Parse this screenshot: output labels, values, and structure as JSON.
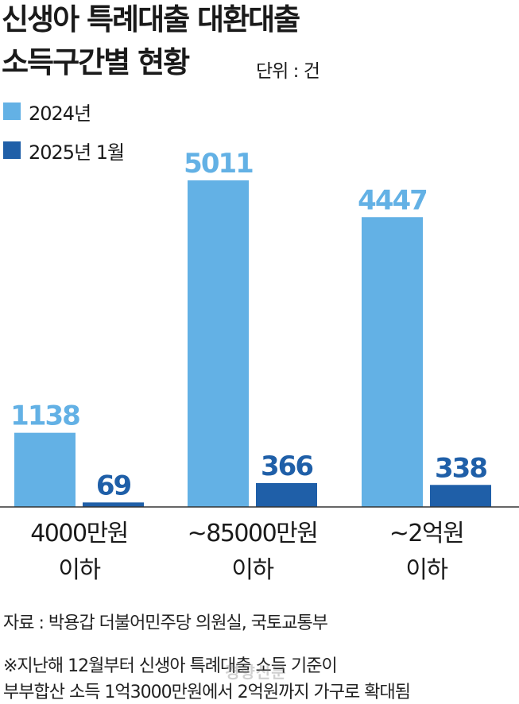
{
  "title_line1": "신생아 특례대출 대환대출",
  "title_line2": "소득구간별 현황",
  "unit": "단위 : 건",
  "legend": [
    {
      "label": "2024년",
      "color": "#63b1e5"
    },
    {
      "label": "2025년 1월",
      "color": "#1f5fa8"
    }
  ],
  "chart_data": {
    "type": "bar",
    "categories": [
      [
        "4000만원",
        "이하"
      ],
      [
        "~85000만원",
        "이하"
      ],
      [
        "~2억원",
        "이하"
      ]
    ],
    "series": [
      {
        "name": "2024년",
        "values": [
          1138,
          5011,
          4447
        ],
        "color": "#63b1e5"
      },
      {
        "name": "2025년 1월",
        "values": [
          69,
          366,
          338
        ],
        "color": "#1f5fa8"
      }
    ],
    "label_colors": {
      "2024년": "#63b1e5",
      "2025년 1월": "#1f5fa8"
    }
  },
  "footer": {
    "source": "자료 : 박용갑 더불어민주당 의원실, 국토교통부",
    "note1": "※지난해 12월부터 신생아 특례대출 소득 기준이",
    "note2": "부부합산 소득 1억3000만원에서 2억원까지 가구로 확대됨"
  },
  "watermark": "경향신문"
}
